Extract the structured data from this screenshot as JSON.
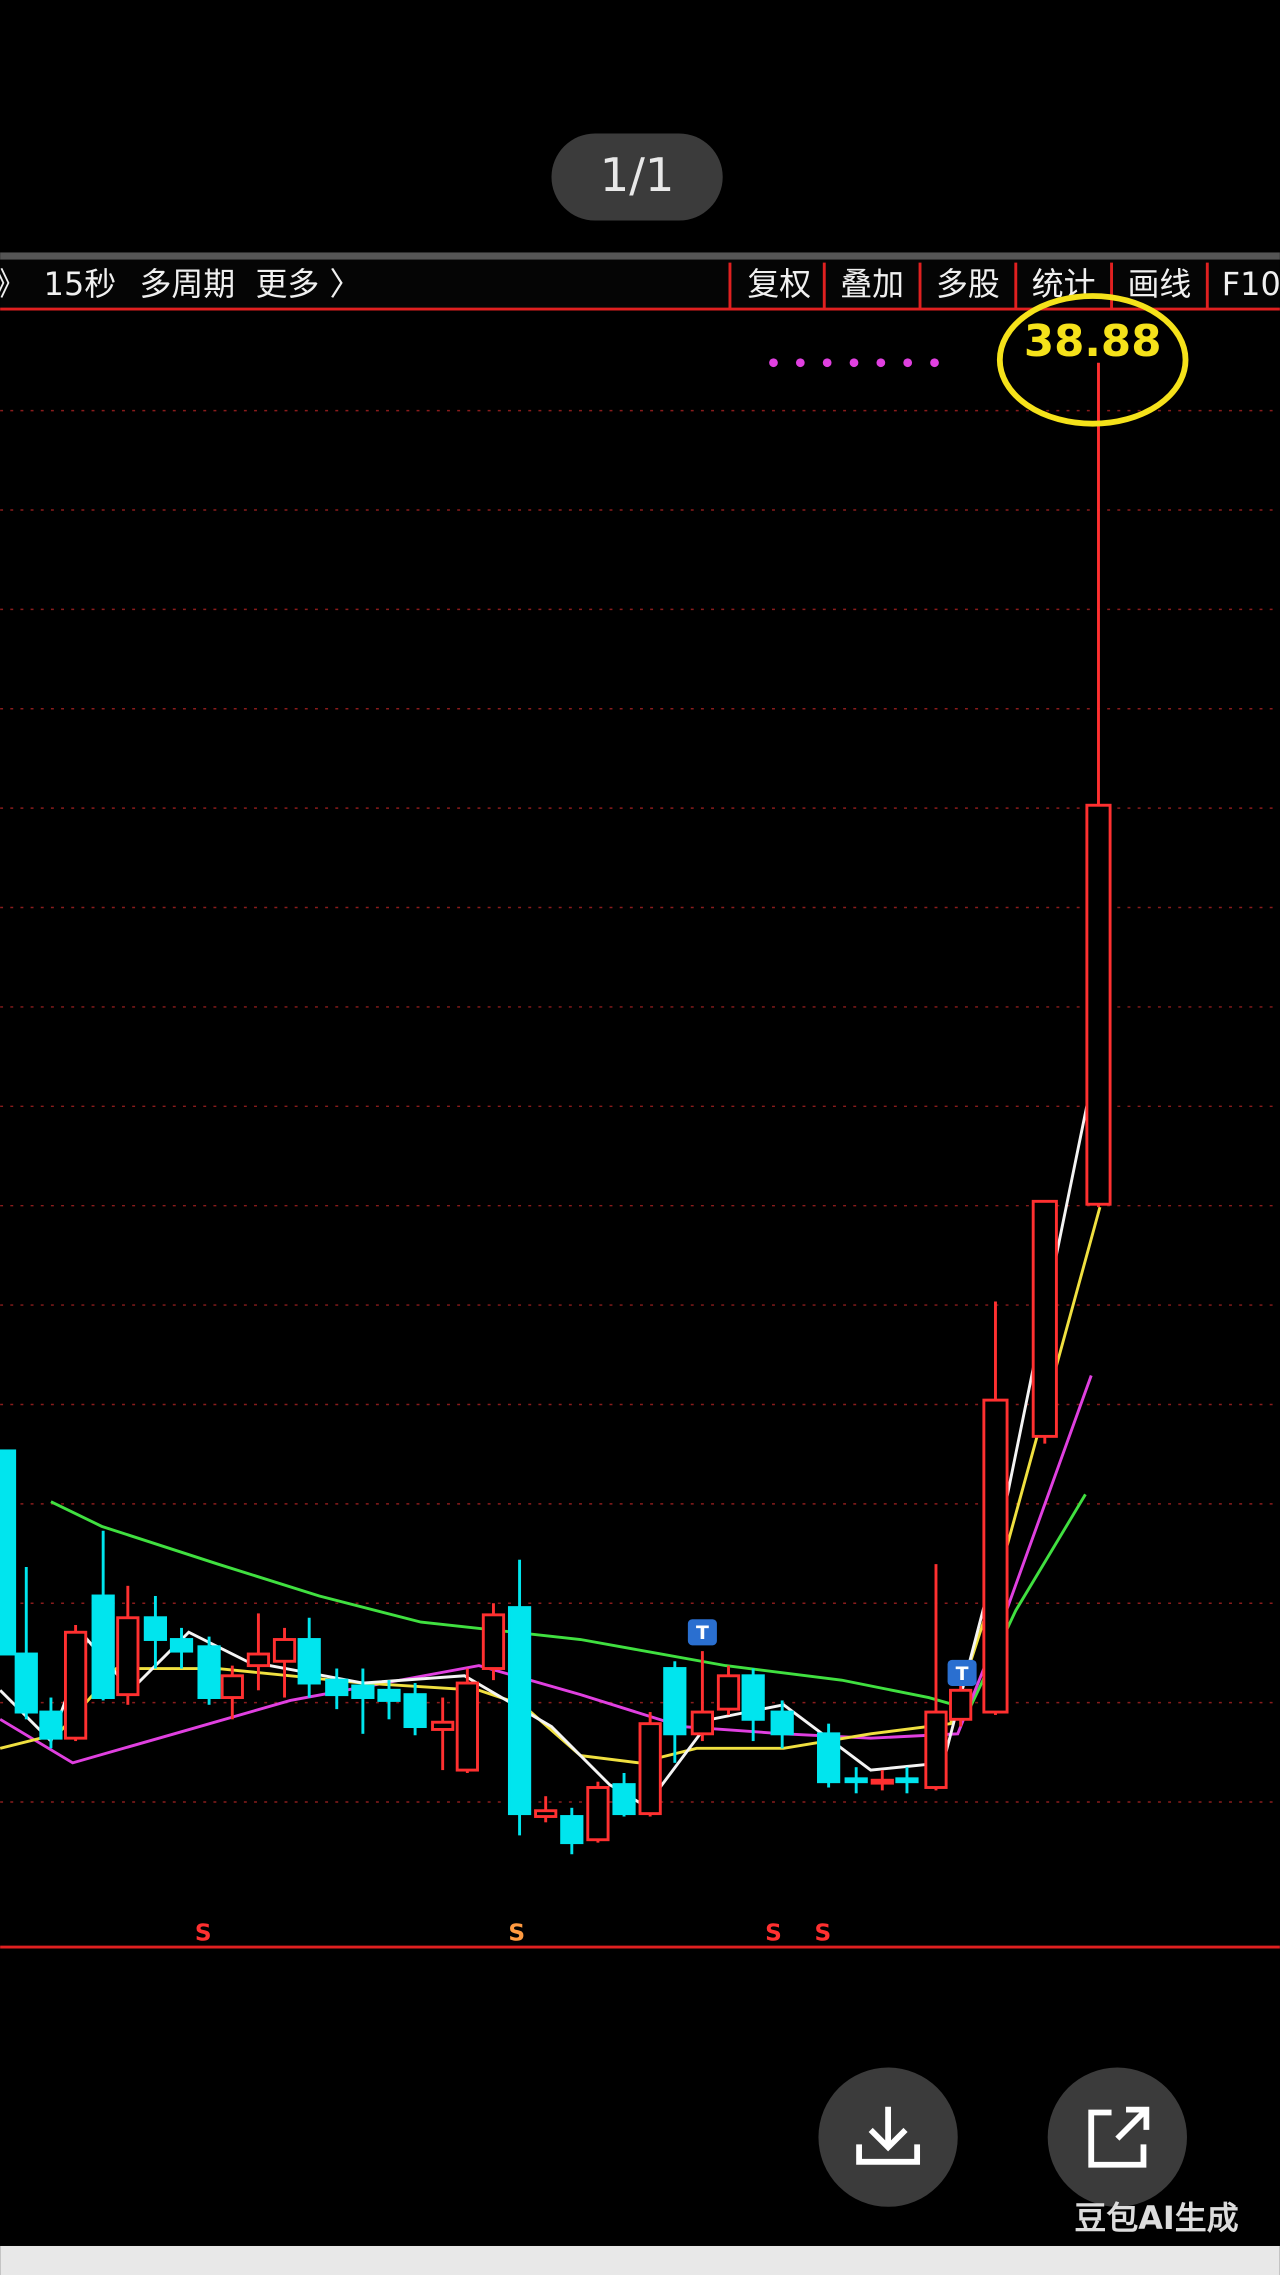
{
  "pager": "1/1",
  "toolbar": {
    "left": [
      "》",
      "15秒",
      "多周期",
      "更多 〉"
    ],
    "right": [
      "复权",
      "叠加",
      "多股",
      "统计",
      "画线",
      "F10"
    ]
  },
  "price_label": "38.88",
  "signals": {
    "s_markers": [
      "S",
      "S",
      "S",
      "S"
    ],
    "t_markers": [
      "T",
      "T"
    ]
  },
  "watermark": "豆包AI生成"
}
